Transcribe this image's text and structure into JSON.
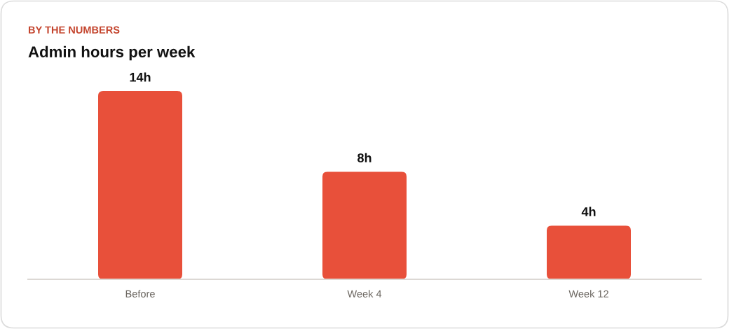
{
  "chart_data": {
    "type": "bar",
    "subtitle": "BY THE NUMBERS",
    "title": "Admin hours per week",
    "categories": [
      "Before",
      "Week 4",
      "Week 12"
    ],
    "values": [
      14,
      8,
      4
    ],
    "value_labels": [
      "14h",
      "8h",
      "4h"
    ],
    "color": "#e8503a"
  }
}
